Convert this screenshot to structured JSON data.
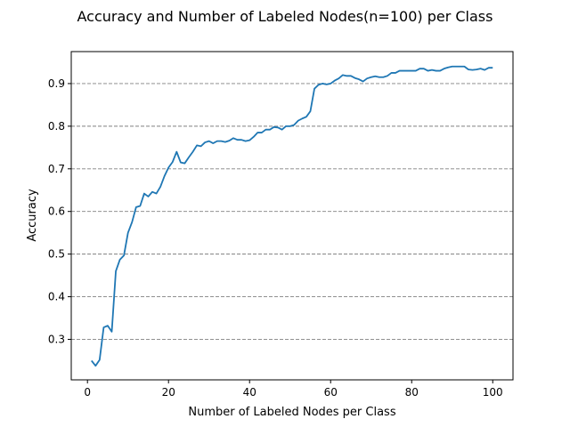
{
  "chart_data": {
    "type": "line",
    "title": "Accuracy and Number of Labeled Nodes(n=100) per Class",
    "xlabel": "Number of Labeled Nodes per Class",
    "ylabel": "Accuracy",
    "xlim": [
      -4,
      105
    ],
    "ylim": [
      0.205,
      0.975
    ],
    "xticks": [
      0,
      20,
      40,
      60,
      80,
      100
    ],
    "yticks": [
      0.3,
      0.4,
      0.5,
      0.6,
      0.7,
      0.8,
      0.9
    ],
    "grid": "horizontal dashed",
    "series_color": "#1f77b4",
    "series": [
      {
        "x": [
          1,
          2,
          3,
          4,
          5,
          6,
          7,
          8,
          9,
          10,
          11,
          12,
          13,
          14,
          15,
          16,
          17,
          18,
          19,
          20,
          21,
          22,
          23,
          24,
          25,
          26,
          27,
          28,
          29,
          30,
          31,
          32,
          33,
          34,
          35,
          36,
          37,
          38,
          39,
          40,
          41,
          42,
          43,
          44,
          45,
          46,
          47,
          48,
          49,
          50,
          51,
          52,
          53,
          54,
          55,
          56,
          57,
          58,
          59,
          60,
          61,
          62,
          63,
          64,
          65,
          66,
          67,
          68,
          69,
          70,
          71,
          72,
          73,
          74,
          75,
          76,
          77,
          78,
          79,
          80,
          81,
          82,
          83,
          84,
          85,
          86,
          87,
          88,
          89,
          90,
          91,
          92,
          93,
          94,
          95,
          96,
          97,
          98,
          99,
          100
        ],
        "values": [
          0.25,
          0.238,
          0.252,
          0.328,
          0.332,
          0.318,
          0.46,
          0.487,
          0.497,
          0.55,
          0.575,
          0.61,
          0.613,
          0.642,
          0.635,
          0.646,
          0.642,
          0.658,
          0.683,
          0.703,
          0.716,
          0.74,
          0.715,
          0.713,
          0.727,
          0.74,
          0.755,
          0.753,
          0.762,
          0.765,
          0.76,
          0.765,
          0.765,
          0.763,
          0.766,
          0.772,
          0.768,
          0.768,
          0.765,
          0.767,
          0.775,
          0.785,
          0.785,
          0.792,
          0.792,
          0.798,
          0.797,
          0.792,
          0.8,
          0.8,
          0.803,
          0.813,
          0.818,
          0.822,
          0.835,
          0.888,
          0.897,
          0.9,
          0.898,
          0.9,
          0.907,
          0.912,
          0.92,
          0.918,
          0.918,
          0.913,
          0.91,
          0.905,
          0.912,
          0.915,
          0.917,
          0.915,
          0.915,
          0.918,
          0.925,
          0.925,
          0.93,
          0.93,
          0.93,
          0.93,
          0.93,
          0.935,
          0.935,
          0.93,
          0.932,
          0.93,
          0.93,
          0.935,
          0.938,
          0.94,
          0.94,
          0.94,
          0.94,
          0.933,
          0.932,
          0.933,
          0.935,
          0.932,
          0.937,
          0.937
        ]
      }
    ]
  }
}
